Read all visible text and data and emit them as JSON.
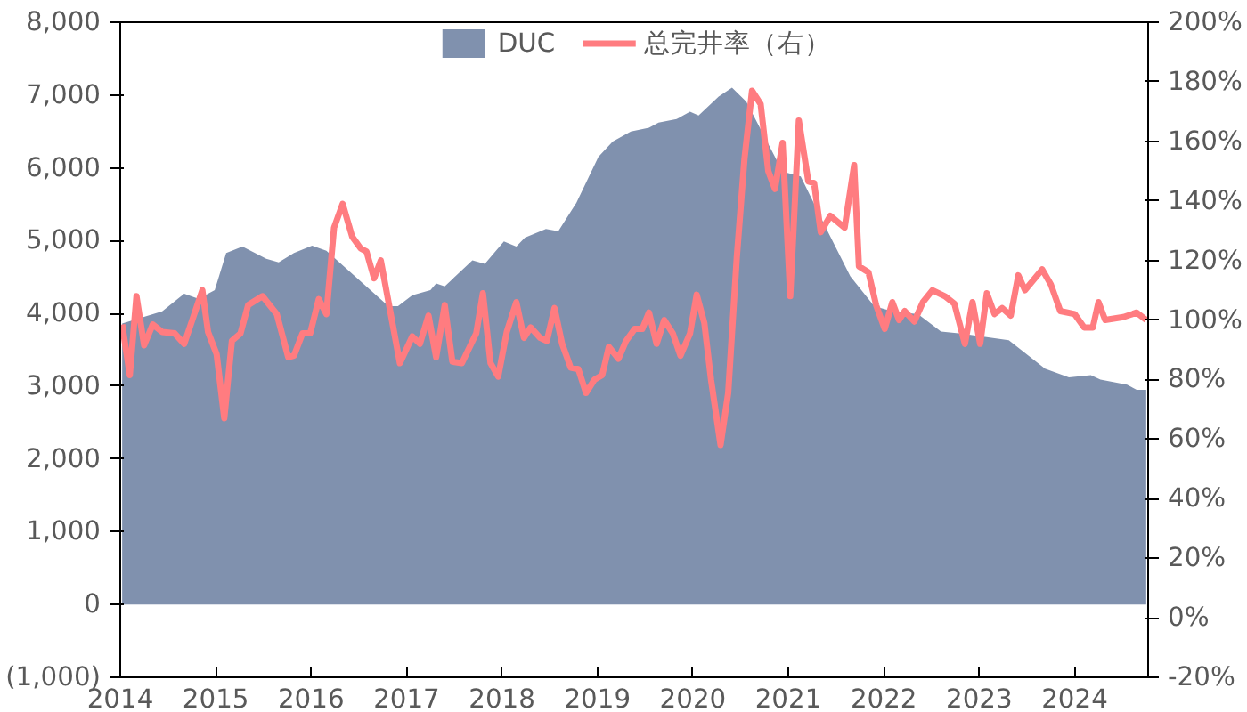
{
  "chart_data": {
    "type": "area",
    "legend": "top",
    "grid": false,
    "xlim": [
      2014,
      2024.77
    ],
    "xticks": [
      2014,
      2015,
      2016,
      2017,
      2018,
      2019,
      2020,
      2021,
      2022,
      2023,
      2024
    ],
    "ylim": [
      -1000,
      8000
    ],
    "yticks": [
      {
        "value": -1000,
        "label": "(1,000)"
      },
      {
        "value": 0,
        "label": "0"
      },
      {
        "value": 1000,
        "label": "1,000"
      },
      {
        "value": 2000,
        "label": "2,000"
      },
      {
        "value": 3000,
        "label": "3,000"
      },
      {
        "value": 4000,
        "label": "4,000"
      },
      {
        "value": 5000,
        "label": "5,000"
      },
      {
        "value": 6000,
        "label": "6,000"
      },
      {
        "value": 7000,
        "label": "7,000"
      },
      {
        "value": 8000,
        "label": "8,000"
      }
    ],
    "y2lim": [
      -20,
      200
    ],
    "y2ticks": [
      {
        "value": -20,
        "label": "-20%"
      },
      {
        "value": 0,
        "label": "0%"
      },
      {
        "value": 20,
        "label": "20%"
      },
      {
        "value": 40,
        "label": "40%"
      },
      {
        "value": 60,
        "label": "60%"
      },
      {
        "value": 80,
        "label": "80%"
      },
      {
        "value": 100,
        "label": "100%"
      },
      {
        "value": 120,
        "label": "120%"
      },
      {
        "value": 140,
        "label": "140%"
      },
      {
        "value": 160,
        "label": "160%"
      },
      {
        "value": 180,
        "label": "180%"
      },
      {
        "value": 200,
        "label": "200%"
      }
    ],
    "series": [
      {
        "name": "DUC",
        "color": "#8091ae",
        "x": [
          2014.02,
          2014.44,
          2014.67,
          2014.82,
          2014.99,
          2015.11,
          2015.28,
          2015.53,
          2015.66,
          2015.82,
          2016.01,
          2016.16,
          2016.81,
          2016.91,
          2017.06,
          2017.25,
          2017.31,
          2017.4,
          2017.69,
          2017.82,
          2018.02,
          2018.15,
          2018.24,
          2018.46,
          2018.59,
          2018.78,
          2019.01,
          2019.16,
          2019.35,
          2019.54,
          2019.64,
          2019.83,
          2019.97,
          2020.06,
          2020.27,
          2020.41,
          2020.56,
          2020.75,
          2020.94,
          2021.13,
          2021.4,
          2021.65,
          2021.9,
          2022.09,
          2022.36,
          2022.6,
          2022.83,
          2023.31,
          2023.69,
          2023.94,
          2024.17,
          2024.27,
          2024.55,
          2024.65,
          2024.75
        ],
        "values": [
          3860,
          4030,
          4270,
          4200,
          4320,
          4830,
          4920,
          4750,
          4700,
          4830,
          4930,
          4860,
          4100,
          4100,
          4250,
          4320,
          4410,
          4370,
          4730,
          4680,
          4990,
          4920,
          5040,
          5160,
          5130,
          5520,
          6150,
          6360,
          6500,
          6550,
          6620,
          6670,
          6770,
          6720,
          6980,
          7100,
          6910,
          6430,
          5950,
          5880,
          5160,
          4510,
          4100,
          4030,
          3990,
          3750,
          3720,
          3630,
          3240,
          3120,
          3150,
          3090,
          3020,
          2950,
          2950
        ]
      },
      {
        "name": "总完井率（右）",
        "type": "line",
        "axis": "y2",
        "color": "#ff7c80",
        "x": [
          2014.02,
          2014.1,
          2014.17,
          2014.25,
          2014.34,
          2014.44,
          2014.57,
          2014.67,
          2014.86,
          2014.92,
          2015.01,
          2015.09,
          2015.17,
          2015.26,
          2015.34,
          2015.49,
          2015.64,
          2015.76,
          2015.82,
          2015.91,
          2015.99,
          2016.08,
          2016.16,
          2016.24,
          2016.33,
          2016.43,
          2016.52,
          2016.58,
          2016.66,
          2016.73,
          2016.93,
          2017.06,
          2017.14,
          2017.23,
          2017.31,
          2017.4,
          2017.48,
          2017.58,
          2017.73,
          2017.8,
          2017.88,
          2017.96,
          2018.05,
          2018.15,
          2018.23,
          2018.3,
          2018.4,
          2018.47,
          2018.55,
          2018.63,
          2018.72,
          2018.8,
          2018.88,
          2018.97,
          2019.05,
          2019.12,
          2019.22,
          2019.3,
          2019.39,
          2019.47,
          2019.54,
          2019.62,
          2019.7,
          2019.79,
          2019.87,
          2019.97,
          2020.04,
          2020.12,
          2020.19,
          2020.29,
          2020.37,
          2020.46,
          2020.54,
          2020.62,
          2020.71,
          2020.79,
          2020.86,
          2020.94,
          2021.02,
          2021.11,
          2021.21,
          2021.27,
          2021.34,
          2021.44,
          2021.59,
          2021.69,
          2021.74,
          2021.84,
          2021.92,
          2022.01,
          2022.09,
          2022.16,
          2022.22,
          2022.32,
          2022.41,
          2022.51,
          2022.64,
          2022.74,
          2022.85,
          2022.93,
          2023.01,
          2023.08,
          2023.16,
          2023.24,
          2023.33,
          2023.41,
          2023.48,
          2023.66,
          2023.75,
          2023.85,
          2024.0,
          2024.1,
          2024.19,
          2024.25,
          2024.32,
          2024.51,
          2024.65,
          2024.75
        ],
        "values": [
          98.5,
          81.5,
          108,
          91.5,
          98.5,
          96,
          95.5,
          92,
          110,
          96,
          88.5,
          67,
          93,
          95.5,
          105,
          108,
          102,
          87.5,
          88,
          95.5,
          95.5,
          107,
          102,
          131,
          139,
          128,
          124,
          123,
          114,
          120,
          85.5,
          94.5,
          92,
          101.5,
          87.5,
          105,
          86,
          85.5,
          95.5,
          109,
          85.5,
          81,
          96,
          106,
          94,
          97.5,
          94,
          93,
          104,
          92,
          84,
          83.5,
          75.5,
          80,
          81.5,
          91,
          87,
          93,
          97,
          97,
          102.5,
          92,
          100,
          95.5,
          88,
          95.5,
          108.5,
          99,
          80,
          58,
          75.5,
          121,
          154,
          177,
          172.5,
          150,
          144,
          159.5,
          108,
          167,
          146.5,
          146,
          129.5,
          135,
          131,
          152,
          118,
          116,
          105,
          97,
          106,
          100,
          103,
          99.5,
          106,
          110,
          108,
          105.5,
          92,
          106,
          92,
          109,
          102,
          104,
          101.5,
          115,
          110,
          117,
          112,
          103,
          102,
          97.5,
          97.5,
          106,
          100,
          101,
          102.5,
          100
        ]
      }
    ]
  }
}
